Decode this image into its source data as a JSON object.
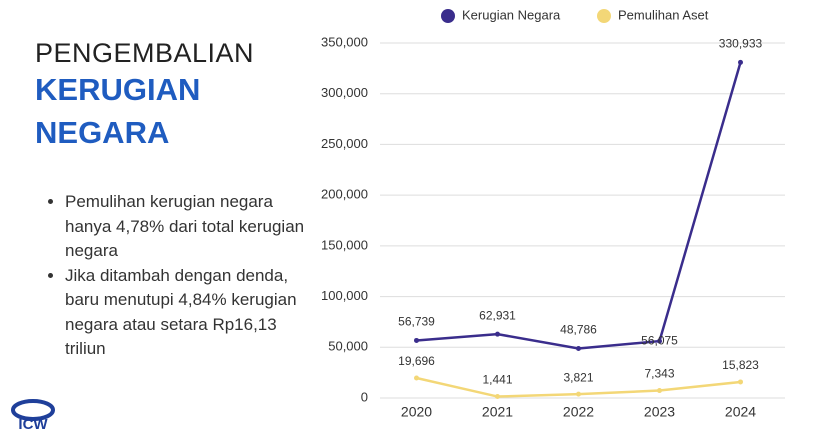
{
  "header": {
    "title_line1": "PENGEMBALIAN",
    "title_line2": "KERUGIAN",
    "title_line3": "NEGARA"
  },
  "bullets": [
    "Pemulihan kerugian negara hanya 4,78% dari total kerugian negara",
    "Jika ditambah dengan denda, baru menutupi 4,84% kerugian negara atau setara Rp16,13 triliun"
  ],
  "logo": "ICW",
  "chart_data": {
    "type": "line",
    "categories": [
      "2020",
      "2021",
      "2022",
      "2023",
      "2024"
    ],
    "series": [
      {
        "name": "Kerugian Negara",
        "color": "#3a2d8c",
        "values": [
          56739,
          62931,
          48786,
          56075,
          330933
        ],
        "value_labels": [
          "56,739",
          "62,931",
          "48,786",
          "56,075",
          "330,933"
        ]
      },
      {
        "name": "Pemulihan Aset",
        "color": "#f3d777",
        "values": [
          19696,
          1441,
          3821,
          7343,
          15823
        ],
        "value_labels": [
          "19,696",
          "1,441",
          "3,821",
          "7,343",
          "15,823"
        ]
      }
    ],
    "ylim": [
      0,
      350000
    ],
    "yticks": [
      0,
      {
        "value": 50000,
        "label": "50,000"
      },
      {
        "value": 100000,
        "label": "100,000"
      },
      {
        "value": 150000,
        "label": "150,000"
      },
      {
        "value": 200000,
        "label": "200,000"
      },
      {
        "value": 250000,
        "label": "250,000"
      },
      {
        "value": 300000,
        "label": "300,000"
      },
      {
        "value": 350000,
        "label": "350,000"
      }
    ],
    "grid": true,
    "legend": "top"
  }
}
